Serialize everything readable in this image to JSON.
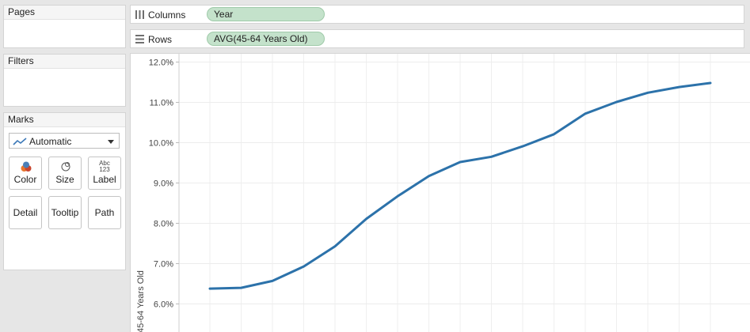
{
  "pages_card": {
    "title": "Pages"
  },
  "filters_card": {
    "title": "Filters"
  },
  "marks_card": {
    "title": "Marks",
    "mark_type": "Automatic",
    "buttons": {
      "color": "Color",
      "size": "Size",
      "label": "Label",
      "detail": "Detail",
      "tooltip": "Tooltip",
      "path": "Path"
    },
    "label_icon_text": {
      "line1": "Abc",
      "line2": "123"
    }
  },
  "columns_shelf": {
    "label": "Columns",
    "pill": "Year"
  },
  "rows_shelf": {
    "label": "Rows",
    "pill": "AVG(45-64 Years Old)"
  },
  "chart_data": {
    "type": "line",
    "ylabel": "45-64 Years Old",
    "yticks": [
      "12.0%",
      "11.0%",
      "10.0%",
      "9.0%",
      "8.0%",
      "7.0%",
      "6.0%"
    ],
    "ylim": [
      0.056,
      0.1205
    ],
    "values": [
      0.0638,
      0.064,
      0.0657,
      0.0693,
      0.0743,
      0.0811,
      0.0867,
      0.0917,
      0.0952,
      0.0965,
      0.0991,
      0.1021,
      0.1072,
      0.1101,
      0.1124,
      0.1138,
      0.1148
    ],
    "line_color": "#2c72aa",
    "grid": true
  }
}
